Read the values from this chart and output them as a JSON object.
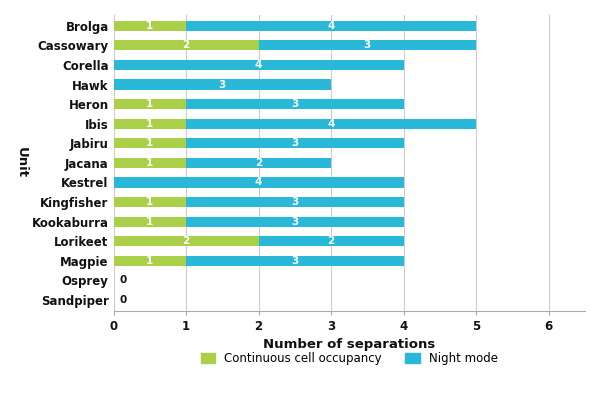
{
  "units": [
    "Brolga",
    "Cassowary",
    "Corella",
    "Hawk",
    "Heron",
    "Ibis",
    "Jabiru",
    "Jacana",
    "Kestrel",
    "Kingfisher",
    "Kookaburra",
    "Lorikeet",
    "Magpie",
    "Osprey",
    "Sandpiper"
  ],
  "continuous": [
    1,
    2,
    0,
    0,
    1,
    1,
    1,
    1,
    0,
    1,
    1,
    2,
    1,
    0,
    0
  ],
  "night": [
    4,
    3,
    4,
    3,
    3,
    4,
    3,
    2,
    4,
    3,
    3,
    2,
    3,
    0,
    0
  ],
  "color_continuous": "#aad04a",
  "color_night": "#29b8d8",
  "xlabel": "Number of separations",
  "ylabel": "Unit",
  "xlim": [
    0,
    6.5
  ],
  "xticks": [
    0,
    1,
    2,
    3,
    4,
    5,
    6
  ],
  "bar_height": 0.52,
  "legend_continuous": "Continuous cell occupancy",
  "legend_night": "Night mode",
  "label_color": "#ffffff",
  "label_fontsize": 7.5,
  "axis_label_fontsize": 9.5,
  "tick_fontsize": 8.5,
  "background_color": "#ffffff",
  "grid_color": "#cccccc"
}
